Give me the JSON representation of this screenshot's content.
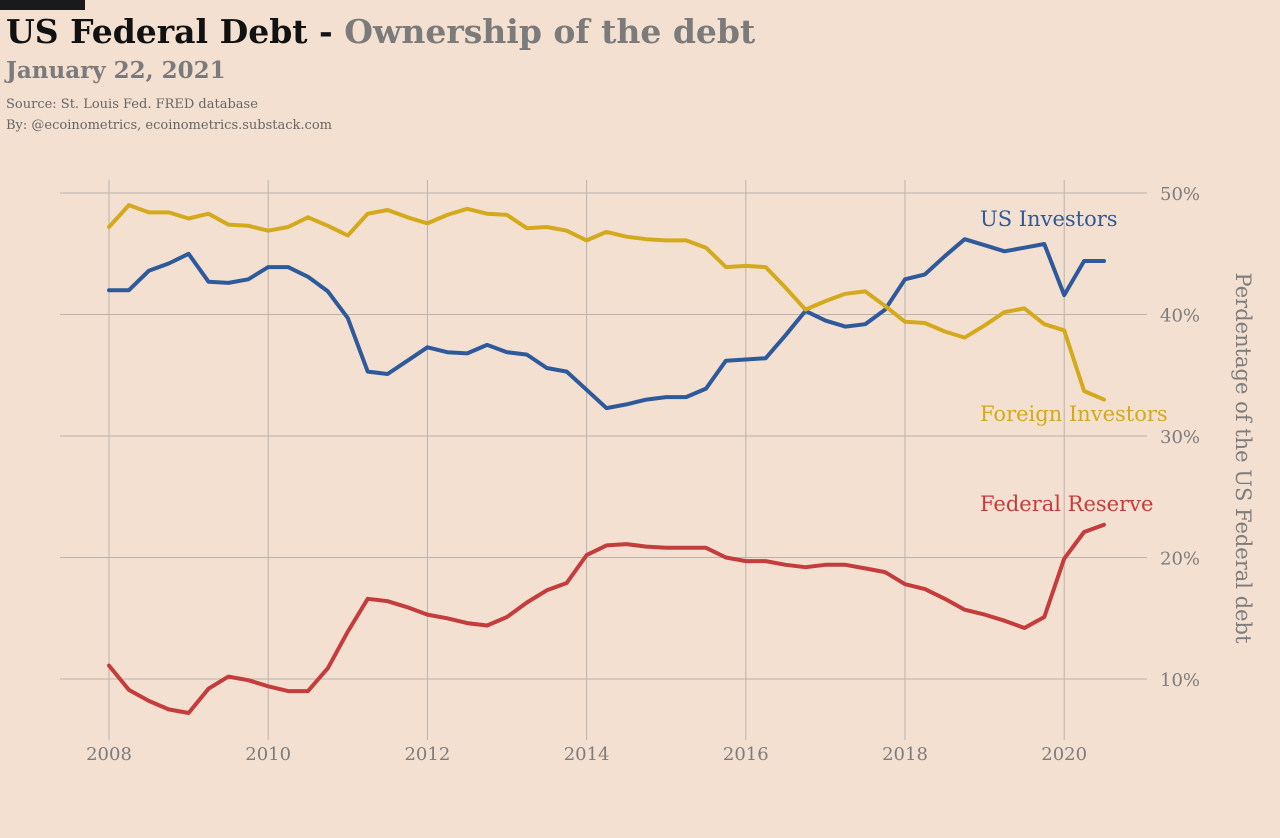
{
  "header": {
    "title_main": "US Federal Debt -",
    "title_accent": "Ownership of the debt",
    "date": "January 22, 2021",
    "source": "Source: St. Louis Fed. FRED database",
    "byline": "By: @ecoinometrics, ecoinometrics.substack.com"
  },
  "chart_data": {
    "type": "line",
    "title": "US Federal Debt - Ownership of the debt",
    "xlabel": "",
    "ylabel": "Perdentage of the US Federal debt",
    "xlim": [
      2007.6,
      2021.2
    ],
    "ylim": [
      5,
      52
    ],
    "x_ticks": [
      2008,
      2010,
      2012,
      2014,
      2016,
      2018,
      2020
    ],
    "x_tick_labels": [
      "2008",
      "2010",
      "2012",
      "2014",
      "2016",
      "2018",
      "2020"
    ],
    "y_ticks": [
      10,
      20,
      30,
      40,
      50
    ],
    "y_tick_labels": [
      "10%",
      "20%",
      "30%",
      "40%",
      "50%"
    ],
    "y_axis_side": "right",
    "grid": true,
    "legend": "direct labels at line ends",
    "x": [
      2008.0,
      2008.25,
      2008.5,
      2008.75,
      2009.0,
      2009.25,
      2009.5,
      2009.75,
      2010.0,
      2010.25,
      2010.5,
      2010.75,
      2011.0,
      2011.25,
      2011.5,
      2011.75,
      2012.0,
      2012.25,
      2012.5,
      2012.75,
      2013.0,
      2013.25,
      2013.5,
      2013.75,
      2014.0,
      2014.25,
      2014.5,
      2014.75,
      2015.0,
      2015.25,
      2015.5,
      2015.75,
      2016.0,
      2016.25,
      2016.5,
      2016.75,
      2017.0,
      2017.25,
      2017.5,
      2017.75,
      2018.0,
      2018.25,
      2018.5,
      2018.75,
      2019.0,
      2019.25,
      2019.5,
      2019.75,
      2020.0,
      2020.25,
      2020.5
    ],
    "series": [
      {
        "name": "US Investors",
        "color": "#2e5a9c",
        "values": [
          42.0,
          42.0,
          43.6,
          44.2,
          45.0,
          42.7,
          42.6,
          42.9,
          43.9,
          43.9,
          43.1,
          41.9,
          39.7,
          35.3,
          35.1,
          36.2,
          37.3,
          36.9,
          36.8,
          37.5,
          36.9,
          36.7,
          35.6,
          35.3,
          33.8,
          32.3,
          32.6,
          33.0,
          33.2,
          33.2,
          33.9,
          36.2,
          36.3,
          36.4,
          38.3,
          40.3,
          39.5,
          39.0,
          39.2,
          40.4,
          42.9,
          43.3,
          44.8,
          46.2,
          45.7,
          45.2,
          45.5,
          45.8,
          41.6,
          44.4,
          44.4
        ]
      },
      {
        "name": "Foreign Investors",
        "color": "#d4aa1c",
        "values": [
          47.2,
          49.0,
          48.4,
          48.4,
          47.9,
          48.3,
          47.4,
          47.3,
          46.9,
          47.2,
          48.0,
          47.3,
          46.5,
          48.3,
          48.6,
          48.0,
          47.5,
          48.2,
          48.7,
          48.3,
          48.2,
          47.1,
          47.2,
          46.9,
          46.1,
          46.8,
          46.4,
          46.2,
          46.1,
          46.1,
          45.5,
          43.9,
          44.0,
          43.9,
          42.2,
          40.4,
          41.1,
          41.7,
          41.9,
          40.7,
          39.4,
          39.3,
          38.6,
          38.1,
          39.1,
          40.2,
          40.5,
          39.2,
          38.7,
          33.7,
          33.0
        ]
      },
      {
        "name": "Federal Reserve",
        "color": "#c43c3c",
        "values": [
          11.1,
          9.1,
          8.2,
          7.5,
          7.2,
          9.2,
          10.2,
          9.9,
          9.4,
          9.0,
          9.0,
          10.9,
          13.9,
          16.6,
          16.4,
          15.9,
          15.3,
          15.0,
          14.6,
          14.4,
          15.1,
          16.3,
          17.3,
          17.9,
          20.2,
          21.0,
          21.1,
          20.9,
          20.8,
          20.8,
          20.8,
          20.0,
          19.7,
          19.7,
          19.4,
          19.2,
          19.4,
          19.4,
          19.1,
          18.8,
          17.8,
          17.4,
          16.6,
          15.7,
          15.3,
          14.8,
          14.2,
          15.1,
          19.9,
          22.1,
          22.7
        ]
      }
    ],
    "annotations": [
      "US Investors",
      "Foreign Investors",
      "Federal Reserve"
    ]
  }
}
